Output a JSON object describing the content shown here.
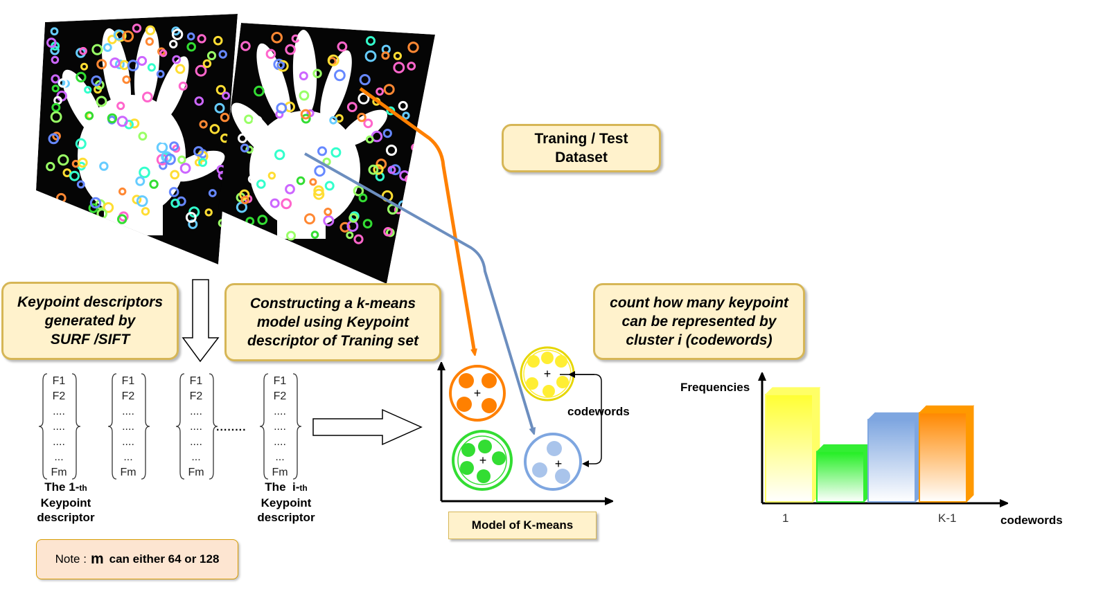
{
  "boxes": {
    "dataset": [
      "Traning / Test",
      "Dataset"
    ],
    "keypoint_gen": [
      "Keypoint descriptors",
      "generated by",
      "SURF /SIFT"
    ],
    "kmeans_construct": [
      "Constructing a k-means",
      "model  using Keypoint",
      "descriptor of Traning set"
    ],
    "count": [
      "count how many keypoint",
      "can be represented by",
      "cluster i (codewords)"
    ]
  },
  "note": {
    "prefix": "Note :",
    "var": "m",
    "suffix": "can either 64 or 128"
  },
  "descriptor_rows": [
    "F1",
    "F2",
    "....",
    "....",
    "....",
    "...",
    "Fm"
  ],
  "descriptor_caption_1": {
    "the": "The",
    "idx": "1-",
    "sub": "th",
    "line2": "Keypoint",
    "line3": "descriptor"
  },
  "descriptor_caption_i": {
    "the": "The",
    "idx": "i-",
    "sub": "th",
    "line2": "Keypoint",
    "line3": "descriptor"
  },
  "ellipsis": "........",
  "kmeans_label": "Model of K-means",
  "codewords_label": "codewords",
  "histogram": {
    "ylabel": "Frequencies",
    "xlabel": "codewords",
    "tick_first": "1",
    "tick_last": "K-1"
  },
  "chart_data": {
    "type": "bar",
    "categories": [
      "1",
      "",
      "",
      "K-1"
    ],
    "values": [
      4.7,
      2.2,
      3.6,
      3.9
    ],
    "xlabel": "codewords",
    "ylabel": "Frequencies",
    "colors": [
      "#ffff66",
      "#33ee33",
      "#7ea6e0",
      "#ff9900"
    ]
  },
  "colors": {
    "orange": "#ff8000",
    "blue": "#6c8ebf",
    "green": "#33dd33",
    "yellow": "#ffee33",
    "box_fill": "#fff2cc",
    "box_border": "#d6b656"
  }
}
